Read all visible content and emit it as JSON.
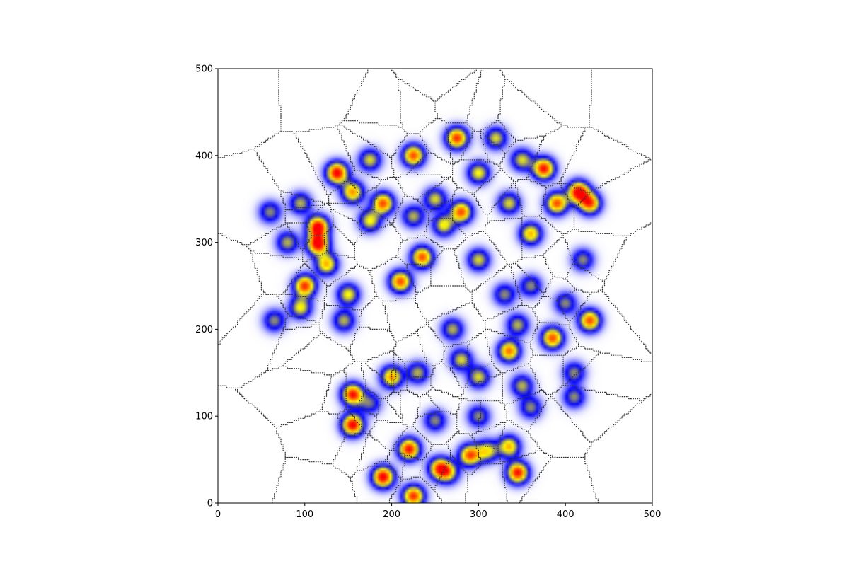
{
  "chart_data": {
    "type": "heatmap",
    "title": "",
    "xlabel": "",
    "ylabel": "",
    "xlim": [
      0,
      500
    ],
    "ylim": [
      0,
      500
    ],
    "xticks": [
      0,
      100,
      200,
      300,
      400,
      500
    ],
    "yticks": [
      0,
      100,
      200,
      300,
      400,
      500
    ],
    "xtick_labels": [
      "0",
      "100",
      "200",
      "300",
      "400",
      "500"
    ],
    "ytick_labels": [
      "0",
      "100",
      "200",
      "300",
      "400",
      "500"
    ],
    "grid": false,
    "colormap": [
      "#ffffff",
      "#0000ff",
      "#ffff00",
      "#ff0000"
    ],
    "boundary_color": "#333333",
    "hotspots": [
      {
        "x": 137,
        "y": 380,
        "v": 1.0
      },
      {
        "x": 115,
        "y": 318,
        "v": 1.0
      },
      {
        "x": 115,
        "y": 298,
        "v": 1.0
      },
      {
        "x": 100,
        "y": 250,
        "v": 0.9
      },
      {
        "x": 155,
        "y": 125,
        "v": 0.95
      },
      {
        "x": 155,
        "y": 90,
        "v": 1.0
      },
      {
        "x": 220,
        "y": 62,
        "v": 0.95
      },
      {
        "x": 190,
        "y": 30,
        "v": 1.0
      },
      {
        "x": 225,
        "y": 8,
        "v": 0.9
      },
      {
        "x": 345,
        "y": 35,
        "v": 0.95
      },
      {
        "x": 290,
        "y": 55,
        "v": 0.85
      },
      {
        "x": 255,
        "y": 40,
        "v": 0.8
      },
      {
        "x": 375,
        "y": 385,
        "v": 0.95
      },
      {
        "x": 415,
        "y": 358,
        "v": 1.0
      },
      {
        "x": 428,
        "y": 345,
        "v": 0.85
      },
      {
        "x": 390,
        "y": 345,
        "v": 0.85
      },
      {
        "x": 275,
        "y": 420,
        "v": 0.9
      },
      {
        "x": 225,
        "y": 400,
        "v": 0.85
      },
      {
        "x": 190,
        "y": 345,
        "v": 0.85
      },
      {
        "x": 235,
        "y": 283,
        "v": 0.85
      },
      {
        "x": 210,
        "y": 255,
        "v": 0.85
      },
      {
        "x": 280,
        "y": 335,
        "v": 0.85
      },
      {
        "x": 335,
        "y": 175,
        "v": 0.8
      },
      {
        "x": 385,
        "y": 190,
        "v": 0.85
      },
      {
        "x": 428,
        "y": 210,
        "v": 0.85
      },
      {
        "x": 155,
        "y": 358,
        "v": 0.75
      },
      {
        "x": 125,
        "y": 275,
        "v": 0.7
      },
      {
        "x": 200,
        "y": 145,
        "v": 0.75
      },
      {
        "x": 335,
        "y": 65,
        "v": 0.7
      },
      {
        "x": 360,
        "y": 310,
        "v": 0.7
      },
      {
        "x": 300,
        "y": 380,
        "v": 0.6
      },
      {
        "x": 250,
        "y": 350,
        "v": 0.55
      },
      {
        "x": 320,
        "y": 420,
        "v": 0.55
      },
      {
        "x": 175,
        "y": 395,
        "v": 0.55
      },
      {
        "x": 95,
        "y": 225,
        "v": 0.6
      },
      {
        "x": 150,
        "y": 240,
        "v": 0.6
      },
      {
        "x": 175,
        "y": 325,
        "v": 0.6
      },
      {
        "x": 260,
        "y": 320,
        "v": 0.6
      },
      {
        "x": 300,
        "y": 280,
        "v": 0.55
      },
      {
        "x": 335,
        "y": 345,
        "v": 0.55
      },
      {
        "x": 300,
        "y": 145,
        "v": 0.55
      },
      {
        "x": 280,
        "y": 165,
        "v": 0.55
      },
      {
        "x": 350,
        "y": 135,
        "v": 0.5
      },
      {
        "x": 230,
        "y": 150,
        "v": 0.5
      },
      {
        "x": 310,
        "y": 60,
        "v": 0.6
      },
      {
        "x": 265,
        "y": 35,
        "v": 0.55
      },
      {
        "x": 95,
        "y": 345,
        "v": 0.5
      },
      {
        "x": 80,
        "y": 300,
        "v": 0.5
      },
      {
        "x": 145,
        "y": 210,
        "v": 0.5
      },
      {
        "x": 400,
        "y": 230,
        "v": 0.45
      },
      {
        "x": 410,
        "y": 150,
        "v": 0.45
      },
      {
        "x": 420,
        "y": 280,
        "v": 0.45
      },
      {
        "x": 345,
        "y": 205,
        "v": 0.5
      },
      {
        "x": 270,
        "y": 200,
        "v": 0.5
      },
      {
        "x": 350,
        "y": 395,
        "v": 0.55
      },
      {
        "x": 225,
        "y": 330,
        "v": 0.5
      },
      {
        "x": 60,
        "y": 335,
        "v": 0.45
      },
      {
        "x": 65,
        "y": 210,
        "v": 0.45
      },
      {
        "x": 410,
        "y": 122,
        "v": 0.45
      },
      {
        "x": 175,
        "y": 115,
        "v": 0.4
      },
      {
        "x": 300,
        "y": 100,
        "v": 0.45
      },
      {
        "x": 250,
        "y": 95,
        "v": 0.45
      },
      {
        "x": 360,
        "y": 110,
        "v": 0.45
      },
      {
        "x": 330,
        "y": 240,
        "v": 0.45
      },
      {
        "x": 360,
        "y": 250,
        "v": 0.45
      }
    ]
  }
}
